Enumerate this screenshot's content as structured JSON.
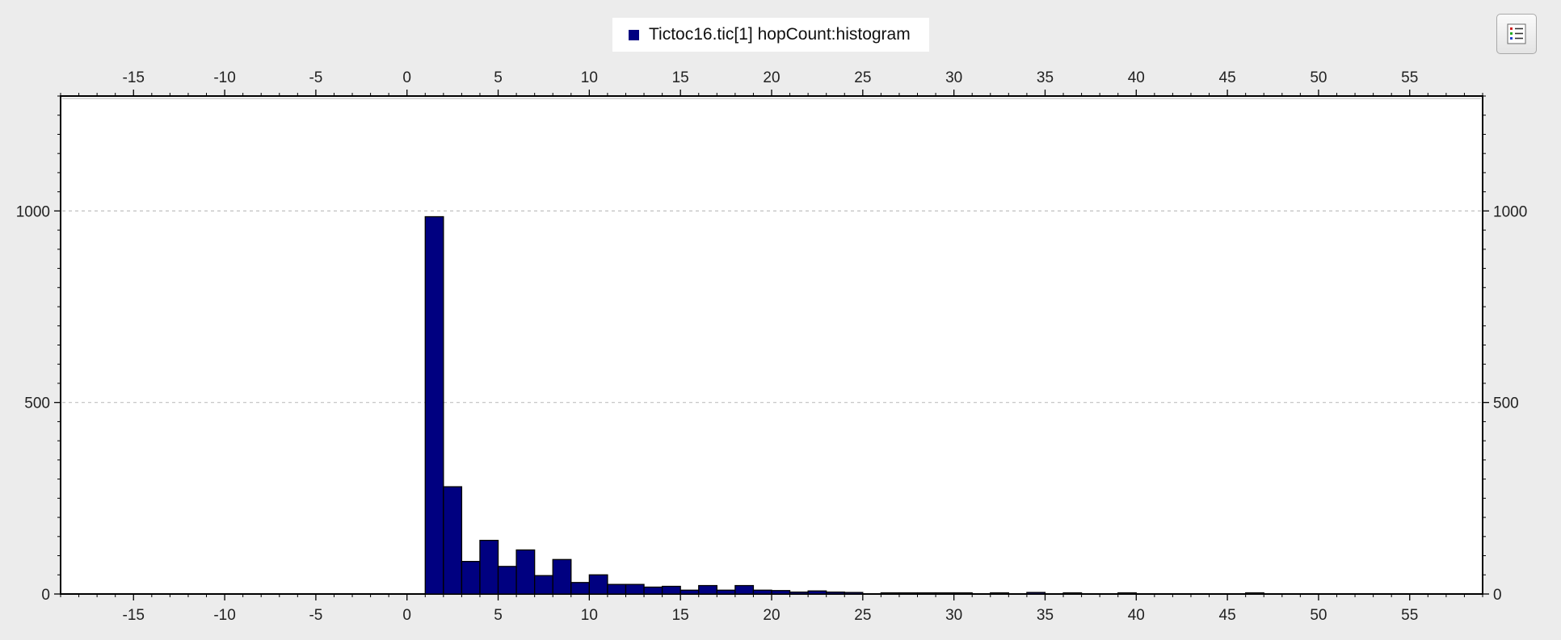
{
  "legend": {
    "label": "Tictoc16.tic[1] hopCount:histogram",
    "placement": "top-center",
    "toggle_icon": "legend-list-icon"
  },
  "colors": {
    "bar_fill": "#000080",
    "bar_stroke": "#000000",
    "plot_background": "#ffffff",
    "window_background": "#ececec",
    "grid": "#c0c0c0"
  },
  "chart_data": {
    "type": "bar",
    "title": "",
    "xlabel": "",
    "ylabel": "",
    "xlim": [
      -19,
      59
    ],
    "ylim": [
      0,
      1300
    ],
    "x_ticks": [
      -15,
      -10,
      -5,
      0,
      5,
      10,
      15,
      20,
      25,
      30,
      35,
      40,
      45,
      50,
      55
    ],
    "y_ticks": [
      0,
      500,
      1000
    ],
    "grid": {
      "horizontal": true,
      "vertical": false,
      "style": "dashed"
    },
    "axes": {
      "x_top": true,
      "x_bottom": true,
      "y_left": true,
      "y_right": true
    },
    "bin_width": 1,
    "series": [
      {
        "name": "Tictoc16.tic[1] hopCount:histogram",
        "bins": [
          {
            "x": 1,
            "value": 985
          },
          {
            "x": 2,
            "value": 280
          },
          {
            "x": 3,
            "value": 85
          },
          {
            "x": 4,
            "value": 140
          },
          {
            "x": 5,
            "value": 72
          },
          {
            "x": 6,
            "value": 115
          },
          {
            "x": 7,
            "value": 48
          },
          {
            "x": 8,
            "value": 90
          },
          {
            "x": 9,
            "value": 30
          },
          {
            "x": 10,
            "value": 50
          },
          {
            "x": 11,
            "value": 25
          },
          {
            "x": 12,
            "value": 25
          },
          {
            "x": 13,
            "value": 18
          },
          {
            "x": 14,
            "value": 20
          },
          {
            "x": 15,
            "value": 10
          },
          {
            "x": 16,
            "value": 22
          },
          {
            "x": 17,
            "value": 10
          },
          {
            "x": 18,
            "value": 22
          },
          {
            "x": 19,
            "value": 10
          },
          {
            "x": 20,
            "value": 9
          },
          {
            "x": 21,
            "value": 5
          },
          {
            "x": 22,
            "value": 8
          },
          {
            "x": 23,
            "value": 5
          },
          {
            "x": 24,
            "value": 4
          },
          {
            "x": 26,
            "value": 3
          },
          {
            "x": 27,
            "value": 3
          },
          {
            "x": 28,
            "value": 3
          },
          {
            "x": 29,
            "value": 3
          },
          {
            "x": 30,
            "value": 3
          },
          {
            "x": 32,
            "value": 3
          },
          {
            "x": 34,
            "value": 4
          },
          {
            "x": 36,
            "value": 3
          },
          {
            "x": 39,
            "value": 3
          },
          {
            "x": 46,
            "value": 3
          }
        ]
      }
    ]
  }
}
